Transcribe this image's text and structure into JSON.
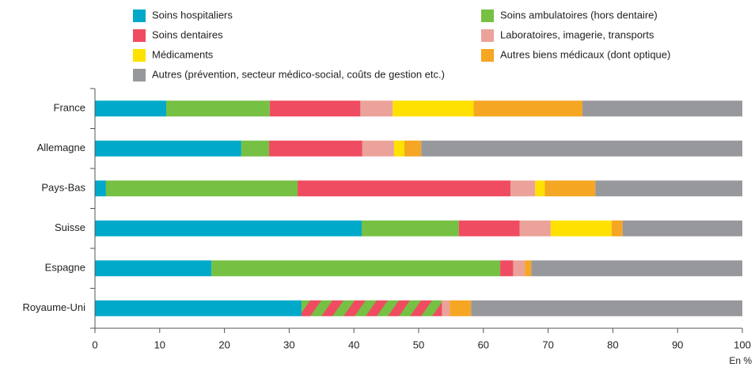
{
  "chart_data": {
    "type": "stacked-bar-horizontal",
    "categories": [
      "France",
      "Allemagne",
      "Pays-Bas",
      "Suisse",
      "Espagne",
      "Royaume-Uni"
    ],
    "series": [
      {
        "name": "Soins hospitaliers",
        "color": "#00a9c9",
        "values": [
          11,
          22.6,
          1.7,
          41.2,
          18,
          31.9
        ]
      },
      {
        "name": "Soins ambulatoires (hors dentaire)",
        "color": "#76c043",
        "values": [
          16,
          4.3,
          29.6,
          15,
          44.6,
          21.7
        ]
      },
      {
        "name": "Soins dentaires",
        "color": "#ef4c61",
        "values": [
          14,
          14.4,
          32.9,
          9.4,
          2,
          null
        ]
      },
      {
        "name": "Laboratoires, imagerie, transports",
        "color": "#eba29a",
        "values": [
          5,
          4.9,
          3.8,
          4.8,
          1.8,
          1.2
        ]
      },
      {
        "name": "Médicaments",
        "color": "#ffe100",
        "values": [
          12.5,
          1.6,
          1.5,
          9.4,
          null,
          null
        ]
      },
      {
        "name": "Autres biens médicaux (dont optique)",
        "color": "#f5a623",
        "values": [
          16.8,
          2.6,
          7.8,
          1.7,
          1,
          3.3
        ]
      },
      {
        "name": "Autres (prévention, secteur médico-social, coûts de gestion etc.)",
        "color": "#97989c",
        "values": [
          24.7,
          49.6,
          22.7,
          18.5,
          32.6,
          41.9
        ]
      }
    ],
    "hatch": {
      "category": 5,
      "series": [
        1,
        2
      ]
    },
    "xlim": [
      0,
      100
    ],
    "xticks": [
      0,
      10,
      20,
      30,
      40,
      50,
      60,
      70,
      80,
      90,
      100
    ],
    "xlabel": "En %"
  }
}
